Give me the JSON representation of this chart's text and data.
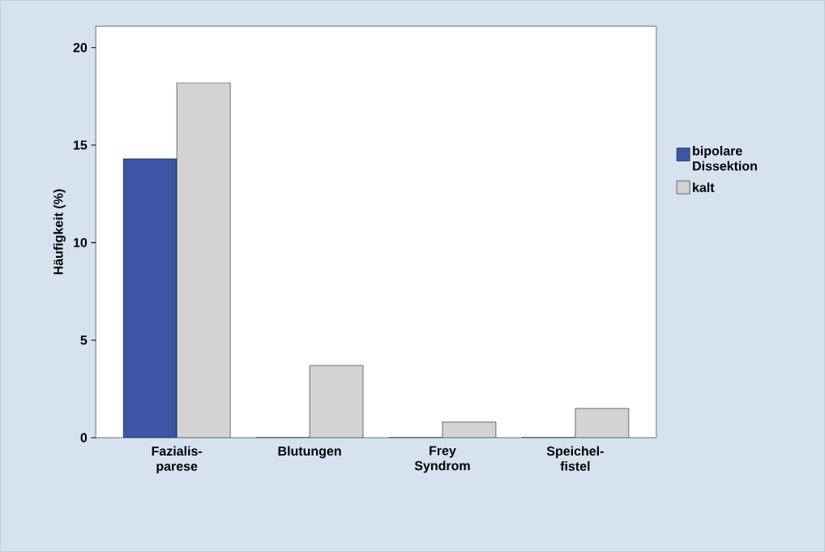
{
  "chart_data": {
    "type": "bar",
    "ylabel": "Häufigkeit (%)",
    "categories": [
      "Fazialis-parese",
      "Blutungen",
      "Frey Syndrom",
      "Speichel-fistel"
    ],
    "series": [
      {
        "name": "bipolare Dissektion",
        "color": "#3c55a5",
        "values": [
          14.3,
          0,
          0,
          0
        ]
      },
      {
        "name": "kalt",
        "color": "#d3d3d3",
        "values": [
          18.2,
          3.7,
          0.8,
          1.5
        ]
      }
    ],
    "ylim": [
      0,
      21.1
    ],
    "yticks": [
      0,
      5,
      10,
      15,
      20
    ],
    "grid": false,
    "legend": "right"
  }
}
